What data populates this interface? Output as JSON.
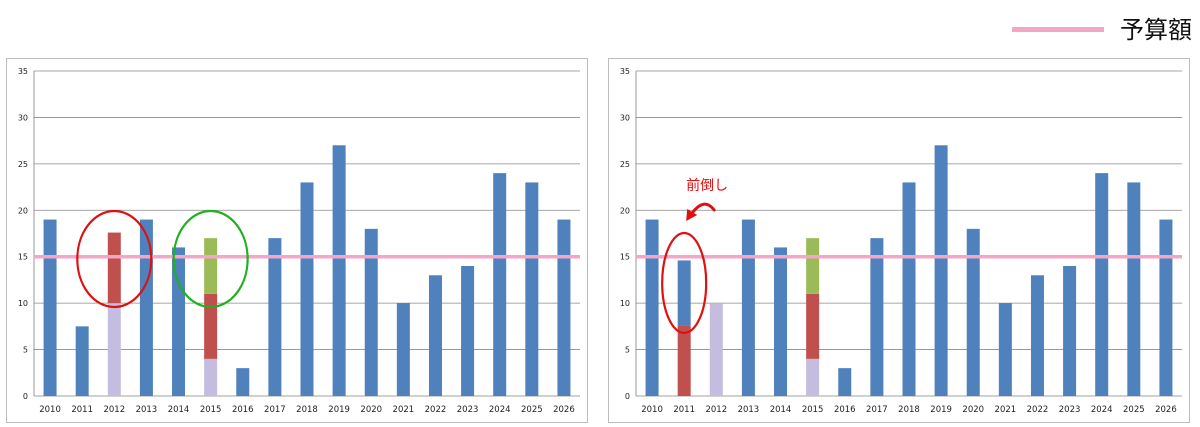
{
  "legend": {
    "label": "予算額",
    "color": "#f4a6c6"
  },
  "chart_data": [
    {
      "type": "bar",
      "categories": [
        "2010",
        "2011",
        "2012",
        "2013",
        "2014",
        "2015",
        "2016",
        "2017",
        "2018",
        "2019",
        "2020",
        "2021",
        "2022",
        "2023",
        "2024",
        "2025",
        "2026"
      ],
      "ylim": [
        0,
        35
      ],
      "yticks": [
        0,
        5,
        10,
        15,
        20,
        25,
        30,
        35
      ],
      "grid": true,
      "stacked": true,
      "series": [
        {
          "color": "#4f81bd",
          "values": [
            19,
            7.5,
            0,
            19,
            16,
            0,
            3,
            17,
            23,
            27,
            18,
            10,
            13,
            14,
            24,
            23,
            19
          ]
        },
        {
          "color": "#c4bde0",
          "values": [
            0,
            0,
            10,
            0,
            0,
            4,
            0,
            0,
            0,
            0,
            0,
            0,
            0,
            0,
            0,
            0,
            0
          ]
        },
        {
          "color": "#c0504d",
          "values": [
            0,
            0,
            7.6,
            0,
            0,
            7,
            0,
            0,
            0,
            0,
            0,
            0,
            0,
            0,
            0,
            0,
            0
          ]
        },
        {
          "color": "#9bbb59",
          "values": [
            0,
            0,
            0,
            0,
            0,
            6,
            0,
            0,
            0,
            0,
            0,
            0,
            0,
            0,
            0,
            0,
            0
          ]
        }
      ],
      "reference_line": {
        "value": 15,
        "color": "#f4a6c6"
      },
      "highlights": [
        {
          "category": "2012",
          "color": "#e01010"
        },
        {
          "category": "2015",
          "color": "#20b020"
        }
      ],
      "annotation": null
    },
    {
      "type": "bar",
      "categories": [
        "2010",
        "2011",
        "2012",
        "2013",
        "2014",
        "2015",
        "2016",
        "2017",
        "2018",
        "2019",
        "2020",
        "2021",
        "2022",
        "2023",
        "2024",
        "2025",
        "2026"
      ],
      "ylim": [
        0,
        35
      ],
      "yticks": [
        0,
        5,
        10,
        15,
        20,
        25,
        30,
        35
      ],
      "grid": true,
      "stacked": true,
      "series": [
        {
          "color": "#4f81bd",
          "values": [
            19,
            7,
            0,
            19,
            16,
            0,
            3,
            17,
            23,
            27,
            18,
            10,
            13,
            14,
            24,
            23,
            19
          ]
        },
        {
          "color": "#c4bde0",
          "values": [
            0,
            0,
            10,
            0,
            0,
            4,
            0,
            0,
            0,
            0,
            0,
            0,
            0,
            0,
            0,
            0,
            0
          ]
        },
        {
          "color": "#c0504d",
          "values": [
            0,
            7.6,
            0,
            0,
            0,
            7,
            0,
            0,
            0,
            0,
            0,
            0,
            0,
            0,
            0,
            0,
            0
          ]
        },
        {
          "color": "#9bbb59",
          "values": [
            0,
            0,
            0,
            0,
            0,
            6,
            0,
            0,
            0,
            0,
            0,
            0,
            0,
            0,
            0,
            0,
            0
          ]
        }
      ],
      "reference_line": {
        "value": 15,
        "color": "#f4a6c6"
      },
      "highlights": [
        {
          "category": "2011",
          "color": "#e01010"
        }
      ],
      "annotation": {
        "text": "前倒し",
        "color": "#e01010",
        "category": "2011"
      }
    }
  ]
}
